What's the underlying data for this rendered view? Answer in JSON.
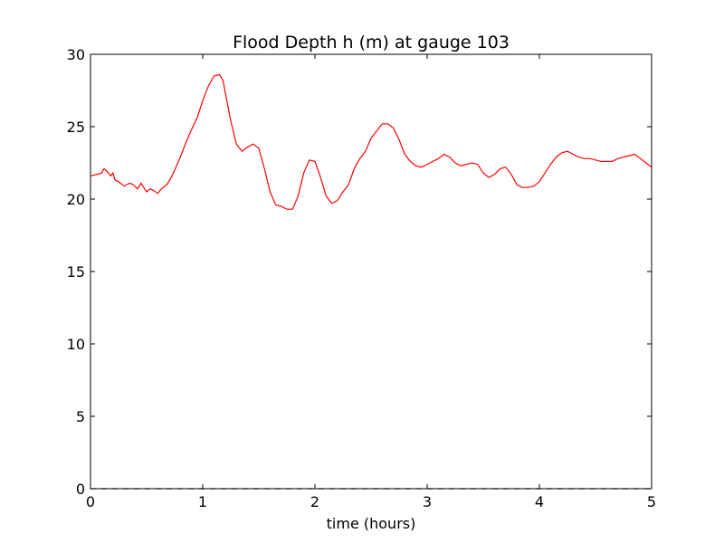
{
  "chart_data": {
    "type": "line",
    "title": "Flood Depth h (m) at gauge 103",
    "xlabel": "time (hours)",
    "ylabel": "",
    "xlim": [
      0,
      5
    ],
    "ylim": [
      0,
      30
    ],
    "xticks": [
      0,
      1,
      2,
      3,
      4,
      5
    ],
    "yticks": [
      0,
      5,
      10,
      15,
      20,
      25,
      30
    ],
    "grid": false,
    "series": [
      {
        "color": "#ff0000",
        "style": "solid",
        "x": [
          0,
          0.05,
          0.1,
          0.12,
          0.15,
          0.18,
          0.2,
          0.22,
          0.25,
          0.3,
          0.35,
          0.38,
          0.42,
          0.45,
          0.5,
          0.53,
          0.56,
          0.6,
          0.63,
          0.68,
          0.72,
          0.75,
          0.8,
          0.85,
          0.9,
          0.95,
          1.0,
          1.05,
          1.1,
          1.15,
          1.18,
          1.2,
          1.25,
          1.3,
          1.35,
          1.4,
          1.45,
          1.5,
          1.55,
          1.6,
          1.65,
          1.7,
          1.75,
          1.8,
          1.85,
          1.9,
          1.95,
          2.0,
          2.05,
          2.1,
          2.15,
          2.2,
          2.25,
          2.3,
          2.35,
          2.4,
          2.45,
          2.5,
          2.55,
          2.6,
          2.65,
          2.7,
          2.75,
          2.8,
          2.85,
          2.9,
          2.95,
          3.0,
          3.05,
          3.1,
          3.15,
          3.2,
          3.25,
          3.3,
          3.35,
          3.4,
          3.45,
          3.5,
          3.55,
          3.6,
          3.65,
          3.7,
          3.75,
          3.8,
          3.85,
          3.9,
          3.95,
          4.0,
          4.05,
          4.1,
          4.15,
          4.2,
          4.25,
          4.3,
          4.35,
          4.4,
          4.45,
          4.5,
          4.55,
          4.6,
          4.65,
          4.7,
          4.75,
          4.8,
          4.85,
          4.9,
          4.95,
          5.0
        ],
        "y": [
          21.6,
          21.7,
          21.8,
          22.1,
          21.9,
          21.6,
          21.8,
          21.3,
          21.2,
          20.9,
          21.1,
          21.0,
          20.7,
          21.1,
          20.5,
          20.7,
          20.6,
          20.4,
          20.7,
          21.0,
          21.5,
          22.0,
          22.9,
          23.9,
          24.8,
          25.6,
          26.8,
          27.8,
          28.5,
          28.6,
          28.2,
          27.4,
          25.4,
          23.8,
          23.3,
          23.6,
          23.8,
          23.5,
          22.1,
          20.5,
          19.6,
          19.5,
          19.3,
          19.3,
          20.2,
          21.8,
          22.7,
          22.6,
          21.5,
          20.2,
          19.7,
          19.9,
          20.5,
          21.0,
          22.1,
          22.8,
          23.3,
          24.2,
          24.7,
          25.2,
          25.2,
          24.9,
          24.1,
          23.1,
          22.6,
          22.3,
          22.2,
          22.4,
          22.6,
          22.8,
          23.1,
          22.9,
          22.5,
          22.3,
          22.4,
          22.5,
          22.4,
          21.8,
          21.5,
          21.7,
          22.1,
          22.2,
          21.7,
          21.0,
          20.8,
          20.8,
          20.9,
          21.2,
          21.8,
          22.4,
          22.9,
          23.2,
          23.3,
          23.1,
          22.9,
          22.8,
          22.8,
          22.7,
          22.6,
          22.6,
          22.6,
          22.8,
          22.9,
          23.0,
          23.1,
          22.8,
          22.5,
          22.2
        ]
      },
      {
        "color": "#000000",
        "style": "dashed",
        "x": [
          0,
          5
        ],
        "y": [
          0,
          0
        ]
      }
    ]
  }
}
